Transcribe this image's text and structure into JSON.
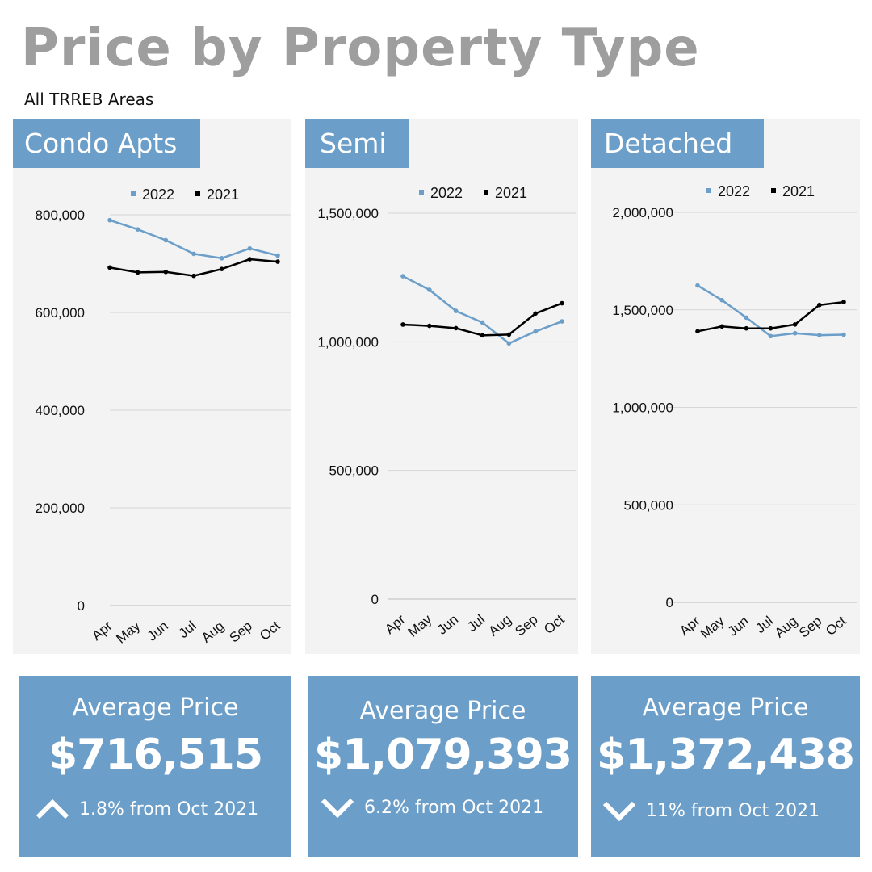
{
  "header": {
    "title": "Price by Property Type",
    "subtitle": "All TRREB Areas"
  },
  "colors": {
    "accent": "#6b9ec8",
    "series_2022": "#6b9ec8",
    "series_2021": "#000000",
    "title_gray": "#9e9e9e",
    "panel_bg": "#f3f3f3"
  },
  "panels": [
    {
      "label": "Condo Apts"
    },
    {
      "label": "Semi"
    },
    {
      "label": "Detached"
    }
  ],
  "cards": [
    {
      "label": "Average Price",
      "value": "$716,515",
      "direction": "up",
      "icon": "chevron-up-icon",
      "change_text": "1.8% from Oct 2021"
    },
    {
      "label": "Average Price",
      "value": "$1,079,393",
      "direction": "down",
      "icon": "chevron-down-icon",
      "change_text": "6.2% from Oct 2021"
    },
    {
      "label": "Average Price",
      "value": "$1,372,438",
      "direction": "down",
      "icon": "chevron-down-icon",
      "change_text": "11% from Oct 2021"
    }
  ],
  "chart_data": [
    {
      "type": "line",
      "title": "Condo Apts",
      "categories": [
        "Apr",
        "May",
        "Jun",
        "Jul",
        "Aug",
        "Sep",
        "Oct"
      ],
      "ylim": [
        0,
        800000
      ],
      "yticks": [
        0,
        200000,
        400000,
        600000,
        800000
      ],
      "ytick_labels": [
        "0",
        "200,000",
        "400,000",
        "600,000",
        "800,000"
      ],
      "grid": true,
      "legend_position": "top",
      "series": [
        {
          "name": "2022",
          "values": [
            789000,
            770000,
            748000,
            720000,
            711000,
            731000,
            716515
          ]
        },
        {
          "name": "2021",
          "values": [
            692000,
            682000,
            683000,
            675000,
            689000,
            709000,
            704000
          ]
        }
      ]
    },
    {
      "type": "line",
      "title": "Semi",
      "categories": [
        "Apr",
        "May",
        "Jun",
        "Jul",
        "Aug",
        "Sep",
        "Oct"
      ],
      "ylim": [
        0,
        1500000
      ],
      "yticks": [
        0,
        500000,
        1000000,
        1500000
      ],
      "ytick_labels": [
        "0",
        "500,000",
        "1,000,000",
        "1,500,000"
      ],
      "grid": true,
      "legend_position": "top",
      "series": [
        {
          "name": "2022",
          "values": [
            1255000,
            1202000,
            1120000,
            1075000,
            994000,
            1040000,
            1079393
          ]
        },
        {
          "name": "2021",
          "values": [
            1067000,
            1062000,
            1053000,
            1025000,
            1028000,
            1110000,
            1150000
          ]
        }
      ]
    },
    {
      "type": "line",
      "title": "Detached",
      "categories": [
        "Apr",
        "May",
        "Jun",
        "Jul",
        "Aug",
        "Sep",
        "Oct"
      ],
      "ylim": [
        0,
        2000000
      ],
      "yticks": [
        0,
        500000,
        1000000,
        1500000,
        2000000
      ],
      "ytick_labels": [
        "0",
        "500,000",
        "1,000,000",
        "1,500,000",
        "2,000,000"
      ],
      "grid": true,
      "legend_position": "top",
      "series": [
        {
          "name": "2022",
          "values": [
            1625000,
            1550000,
            1460000,
            1365000,
            1380000,
            1370000,
            1372438
          ]
        },
        {
          "name": "2021",
          "values": [
            1390000,
            1415000,
            1405000,
            1405000,
            1425000,
            1525000,
            1540000
          ]
        }
      ]
    }
  ]
}
